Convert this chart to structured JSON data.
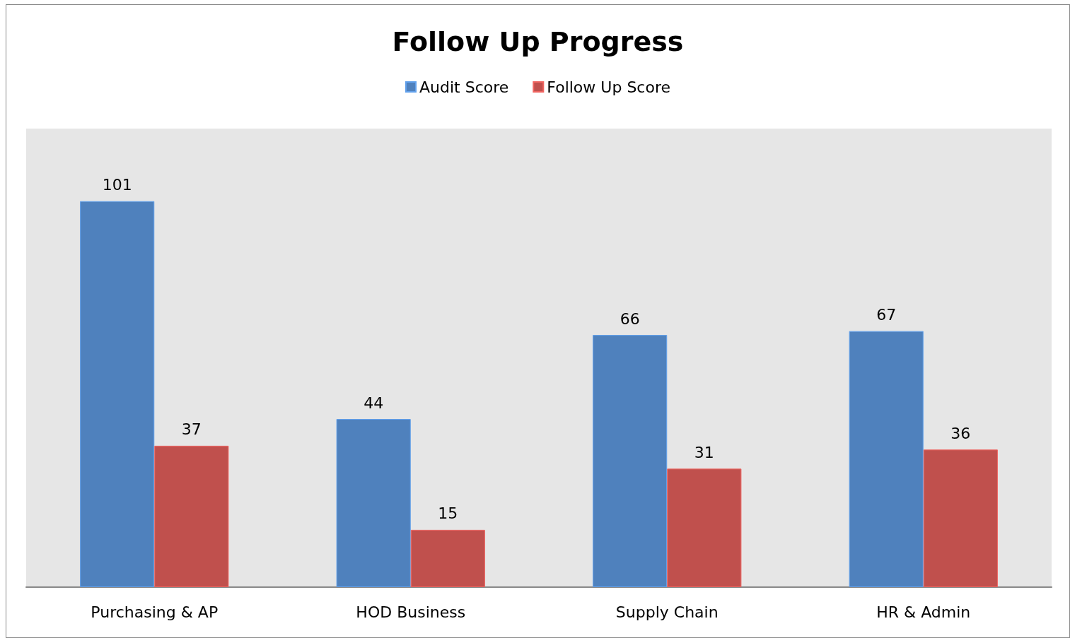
{
  "chart_data": {
    "type": "bar",
    "title": "Follow Up Progress",
    "categories": [
      "Purchasing & AP",
      "HOD Business",
      "Supply Chain",
      "HR & Admin"
    ],
    "series": [
      {
        "name": "Audit Score",
        "color": "#4f81bd",
        "values": [
          101,
          44,
          66,
          67
        ]
      },
      {
        "name": "Follow Up Score",
        "color": "#c0504d",
        "values": [
          37,
          15,
          31,
          36
        ]
      }
    ],
    "ylim": [
      0,
      120
    ],
    "data_labels": true,
    "legend": "top",
    "tick_labels": "x"
  }
}
